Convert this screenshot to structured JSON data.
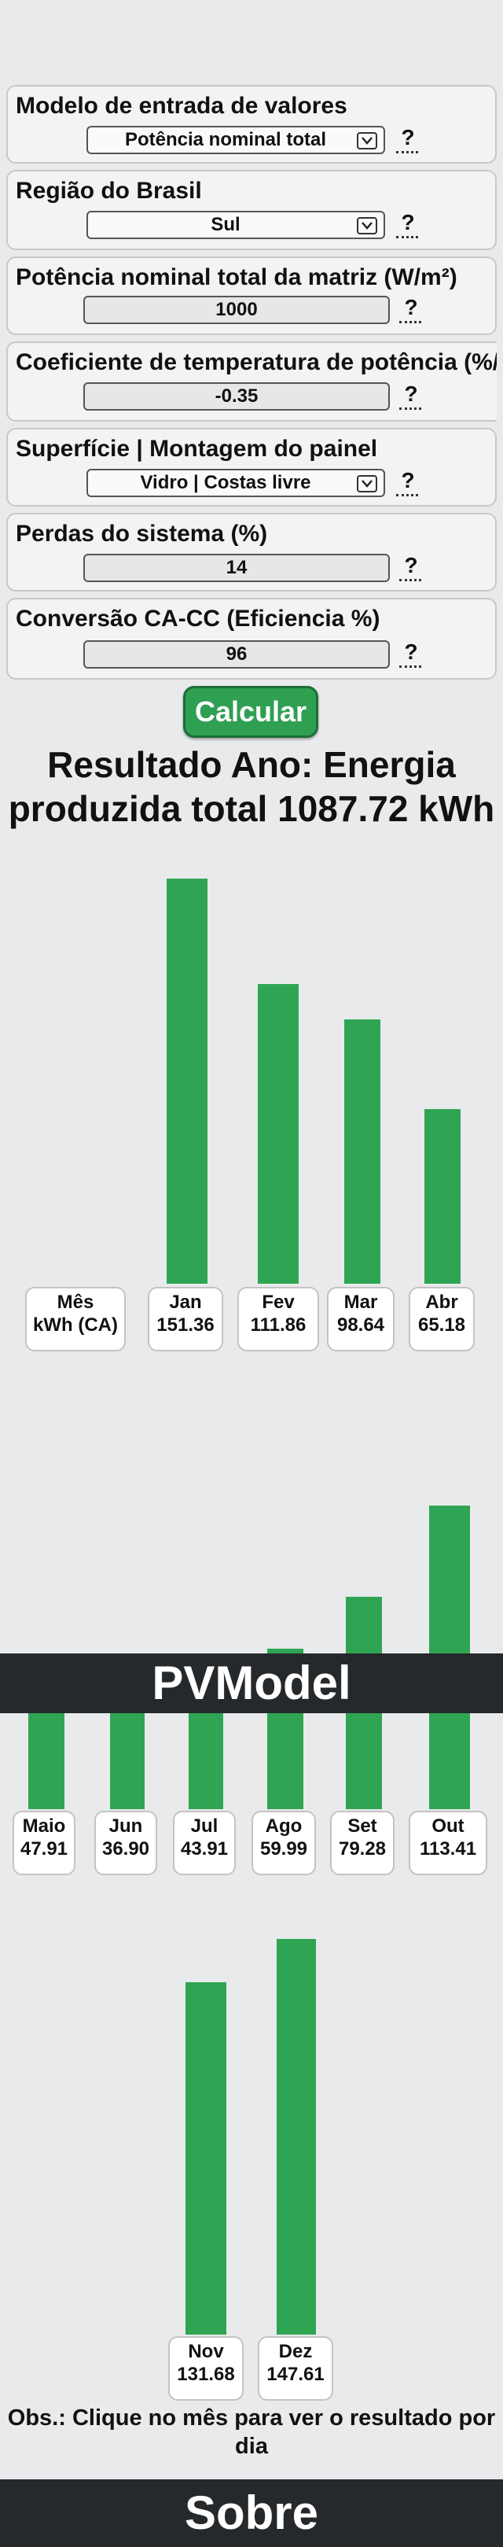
{
  "form": {
    "fields": [
      {
        "label": "Modelo de entrada de valores",
        "type": "select",
        "value": "Potência nominal total",
        "help": "?"
      },
      {
        "label": "Região do Brasil",
        "type": "select",
        "value": "Sul",
        "help": "?"
      },
      {
        "label": "Potência nominal total da matriz (W/m²)",
        "type": "input",
        "value": "1000",
        "help": "?"
      },
      {
        "label": "Coeficiente de temperatura de potência (%/",
        "type": "input",
        "value": "-0.35",
        "help": "?"
      },
      {
        "label": "Superfície | Montagem do painel",
        "type": "select",
        "value": "Vidro | Costas livre",
        "help": "?"
      },
      {
        "label": "Perdas do sistema (%)",
        "type": "input",
        "value": "14",
        "help": "?"
      },
      {
        "label": "Conversão CA-CC (Eficiencia %)",
        "type": "input",
        "value": "96",
        "help": "?"
      }
    ],
    "calculate_label": "Calcular"
  },
  "result": {
    "line1": "Resultado Ano: Energia",
    "line2": "produzida total 1087.72 kWh"
  },
  "legend": {
    "line1": "Mês",
    "line2": "kWh (CA)"
  },
  "chart_data": {
    "type": "bar",
    "categories": [
      "Jan",
      "Fev",
      "Mar",
      "Abr",
      "Maio",
      "Jun",
      "Jul",
      "Ago",
      "Set",
      "Out",
      "Nov",
      "Dez"
    ],
    "values": [
      151.36,
      111.86,
      98.64,
      65.18,
      47.91,
      36.9,
      43.91,
      59.99,
      79.28,
      113.41,
      131.68,
      147.61
    ],
    "value_labels": [
      "151.36",
      "111.86",
      "98.64",
      "65.18",
      "47.91",
      "36.90",
      "43.91",
      "59.99",
      "79.28",
      "113.41",
      "131.68",
      "147.61"
    ],
    "xlabel": "Mês",
    "ylabel": "kWh (CA)",
    "bar_color": "#2fa553"
  },
  "banners": {
    "mid": "PVModel",
    "bottom": "Sobre"
  },
  "obs": {
    "line1": "Obs.: Clique no mês para ver o resultado por",
    "line2": "dia"
  },
  "colors": {
    "accent": "#2f9f52",
    "banner": "#26292c",
    "background": "#e9eaec"
  }
}
